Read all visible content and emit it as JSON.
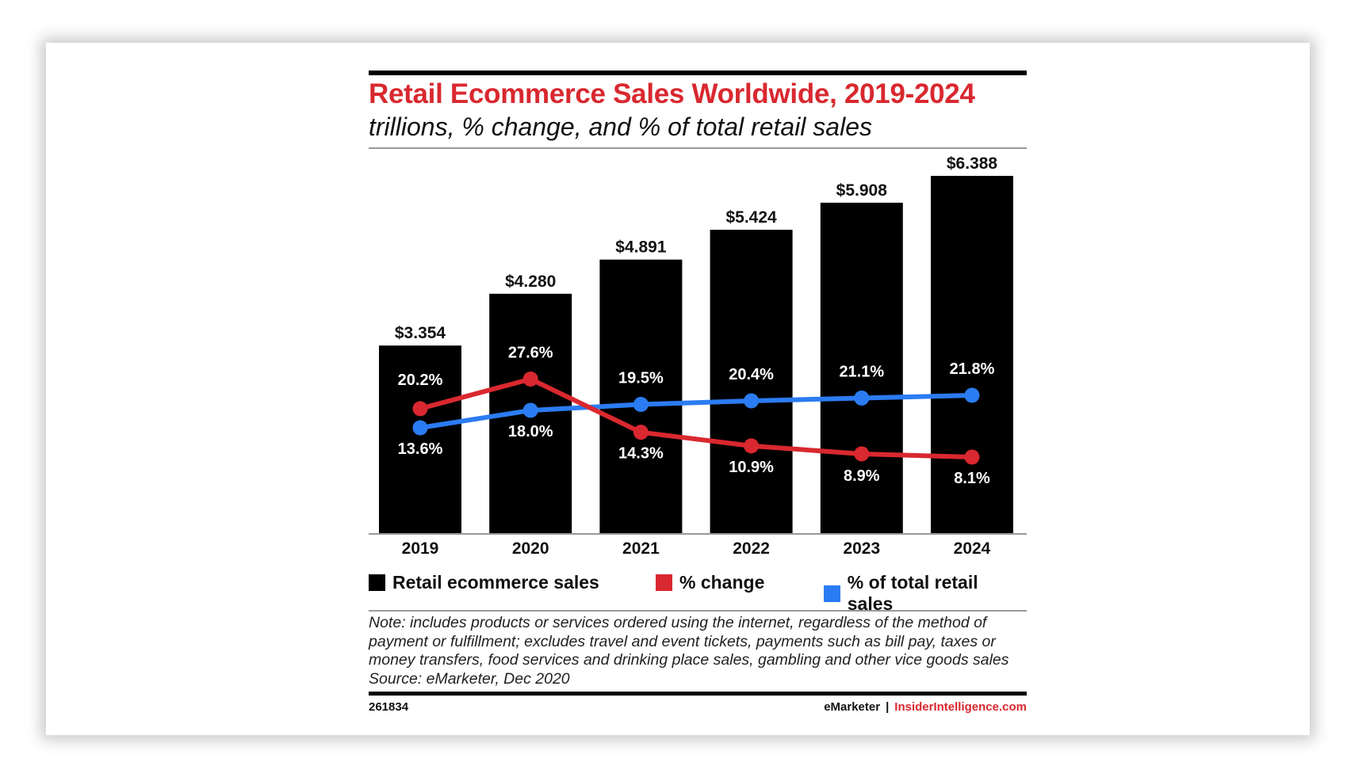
{
  "chart_data": {
    "type": "bar",
    "title": "Retail Ecommerce Sales Worldwide, 2019-2024",
    "subtitle": "trillions, % change, and % of total retail sales",
    "categories": [
      "2019",
      "2020",
      "2021",
      "2022",
      "2023",
      "2024"
    ],
    "series": [
      {
        "name": "Retail ecommerce sales",
        "type": "bar",
        "color": "#000000",
        "values": [
          3.354,
          4.28,
          4.891,
          5.424,
          5.908,
          6.388
        ],
        "labels": [
          "$3.354",
          "$4.280",
          "$4.891",
          "$5.424",
          "$5.908",
          "$6.388"
        ]
      },
      {
        "name": "% change",
        "type": "line",
        "color": "#d9282f",
        "values": [
          20.2,
          27.6,
          14.3,
          10.9,
          8.9,
          8.1
        ],
        "labels": [
          "20.2%",
          "27.6%",
          "14.3%",
          "10.9%",
          "8.9%",
          "8.1%"
        ]
      },
      {
        "name": "% of total retail sales",
        "type": "line",
        "color": "#2b7cf2",
        "values": [
          13.6,
          18.0,
          19.5,
          20.4,
          21.1,
          21.8
        ],
        "labels": [
          "13.6%",
          "18.0%",
          "19.5%",
          "20.4%",
          "21.1%",
          "21.8%"
        ]
      }
    ],
    "bar_ylim": [
      0,
      6.8
    ],
    "line_ylim": [
      0,
      55
    ],
    "xlabel": "",
    "ylabel": "",
    "legend": [
      "Retail ecommerce sales",
      "% change",
      "% of total retail sales"
    ],
    "note": "Note: includes products or services ordered using the internet, regardless of the method of payment or fulfillment; excludes travel and event tickets, payments such as bill pay, taxes or money transfers, food services and drinking place sales, gambling and other vice goods sales",
    "source": "Source: eMarketer, Dec 2020",
    "chart_id": "261834",
    "brand": "eMarketer",
    "separator": "|",
    "site": "InsiderIntelligence.com"
  }
}
